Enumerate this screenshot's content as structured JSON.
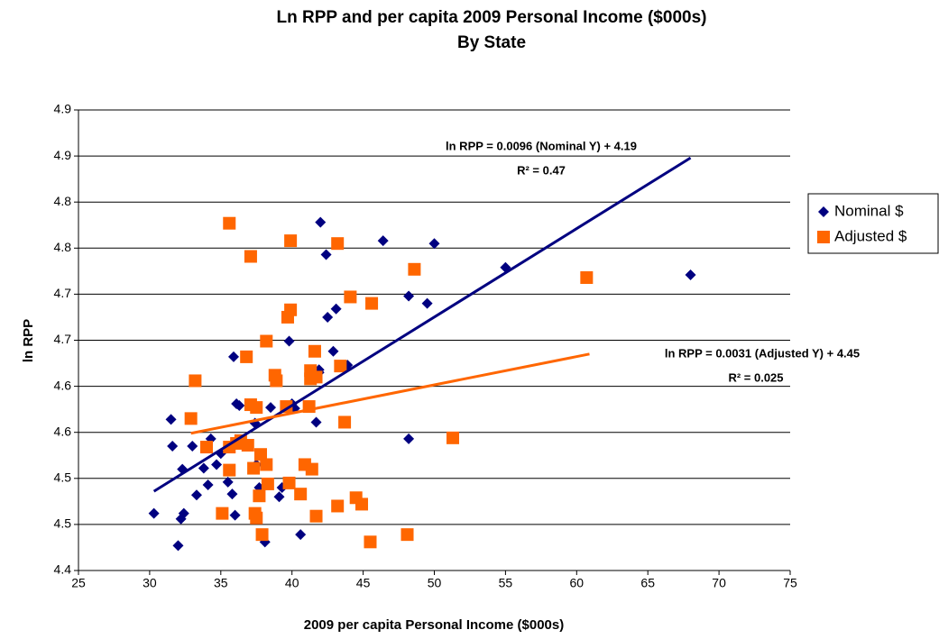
{
  "chart_data": {
    "type": "scatter",
    "title": "Ln RPP and per capita 2009 Personal Income ($000s)",
    "subtitle": "By State",
    "x_label": "2009 per capita Personal Income ($000s)",
    "y_label": "ln RPP",
    "xlim": [
      25,
      75
    ],
    "xticks": [
      25,
      30,
      35,
      40,
      45,
      50,
      55,
      60,
      65,
      70,
      75
    ],
    "ylim": [
      4.4,
      4.9
    ],
    "yticks": [
      4.4,
      {
        "value": 4.45,
        "label": "4.5"
      },
      4.5,
      {
        "value": 4.55,
        "label": "4.6"
      },
      4.6,
      {
        "value": 4.65,
        "label": "4.7"
      },
      4.7,
      {
        "value": 4.75,
        "label": "4.8"
      },
      4.8,
      {
        "value": 4.85,
        "label": "4.9"
      },
      4.9
    ],
    "grid": true,
    "legend": "right",
    "series": [
      {
        "name": "Nominal $",
        "color": "#000080",
        "marker": "diamond",
        "x": [
          30.3,
          31.5,
          31.6,
          32.0,
          32.2,
          32.4,
          32.3,
          33.0,
          33.3,
          33.8,
          34.1,
          34.3,
          34.7,
          35.0,
          35.5,
          35.6,
          35.8,
          36.0,
          36.1,
          36.3,
          35.9,
          37.4,
          37.5,
          37.7,
          38.1,
          38.5,
          38.8,
          39.1,
          39.3,
          39.8,
          40.0,
          40.2,
          40.6,
          41.7,
          42.0,
          41.9,
          41.9,
          42.4,
          42.5,
          42.9,
          43.1,
          43.9,
          46.4,
          48.2,
          48.2,
          49.5,
          50.0,
          55.0,
          68.0
        ],
        "values": [
          4.462,
          4.564,
          4.535,
          4.427,
          4.456,
          4.462,
          4.51,
          4.535,
          4.482,
          4.511,
          4.493,
          4.543,
          4.515,
          4.527,
          4.496,
          4.534,
          4.483,
          4.46,
          4.581,
          4.579,
          4.632,
          4.56,
          4.515,
          4.49,
          4.431,
          4.577,
          4.612,
          4.48,
          4.49,
          4.649,
          4.581,
          4.576,
          4.439,
          4.561,
          4.778,
          4.615,
          4.618,
          4.743,
          4.675,
          4.638,
          4.684,
          4.623,
          4.758,
          4.698,
          4.543,
          4.69,
          4.755,
          4.729,
          4.721
        ],
        "trend": {
          "x": [
            30.3,
            68.0
          ],
          "values": [
            4.486,
            4.848
          ]
        },
        "annotation": [
          "ln RPP = 0.0096 (Nominal Y) + 4.19",
          "R² = 0.47"
        ]
      },
      {
        "name": "Adjusted $",
        "color": "#FF6600",
        "marker": "square",
        "x": [
          35.6,
          39.9,
          43.2,
          37.1,
          48.6,
          60.7,
          44.1,
          39.9,
          39.7,
          45.6,
          38.2,
          36.8,
          41.6,
          41.3,
          41.3,
          41.7,
          43.4,
          33.2,
          38.8,
          38.9,
          37.1,
          37.5,
          39.6,
          41.2,
          32.9,
          36.4,
          36.1,
          34.0,
          35.6,
          36.9,
          43.7,
          37.8,
          38.2,
          40.9,
          41.4,
          37.3,
          35.6,
          51.3,
          39.8,
          38.3,
          37.7,
          40.6,
          35.1,
          37.4,
          37.5,
          43.2,
          44.5,
          44.9,
          37.9,
          41.7,
          45.5,
          48.1
        ],
        "values": [
          4.777,
          4.758,
          4.755,
          4.741,
          4.727,
          4.718,
          4.697,
          4.683,
          4.675,
          4.69,
          4.649,
          4.632,
          4.638,
          4.617,
          4.608,
          4.61,
          4.622,
          4.606,
          4.612,
          4.606,
          4.58,
          4.577,
          4.578,
          4.578,
          4.565,
          4.541,
          4.538,
          4.534,
          4.534,
          4.536,
          4.561,
          4.526,
          4.515,
          4.515,
          4.51,
          4.511,
          4.509,
          4.544,
          4.495,
          4.494,
          4.481,
          4.483,
          4.462,
          4.462,
          4.457,
          4.47,
          4.479,
          4.472,
          4.439,
          4.459,
          4.431,
          4.439
        ],
        "trend": {
          "x": [
            32.9,
            60.9
          ],
          "values": [
            4.549,
            4.635
          ]
        },
        "annotation": [
          "ln RPP = 0.0031 (Adjusted Y) + 4.45",
          "R² = 0.025"
        ]
      }
    ]
  }
}
